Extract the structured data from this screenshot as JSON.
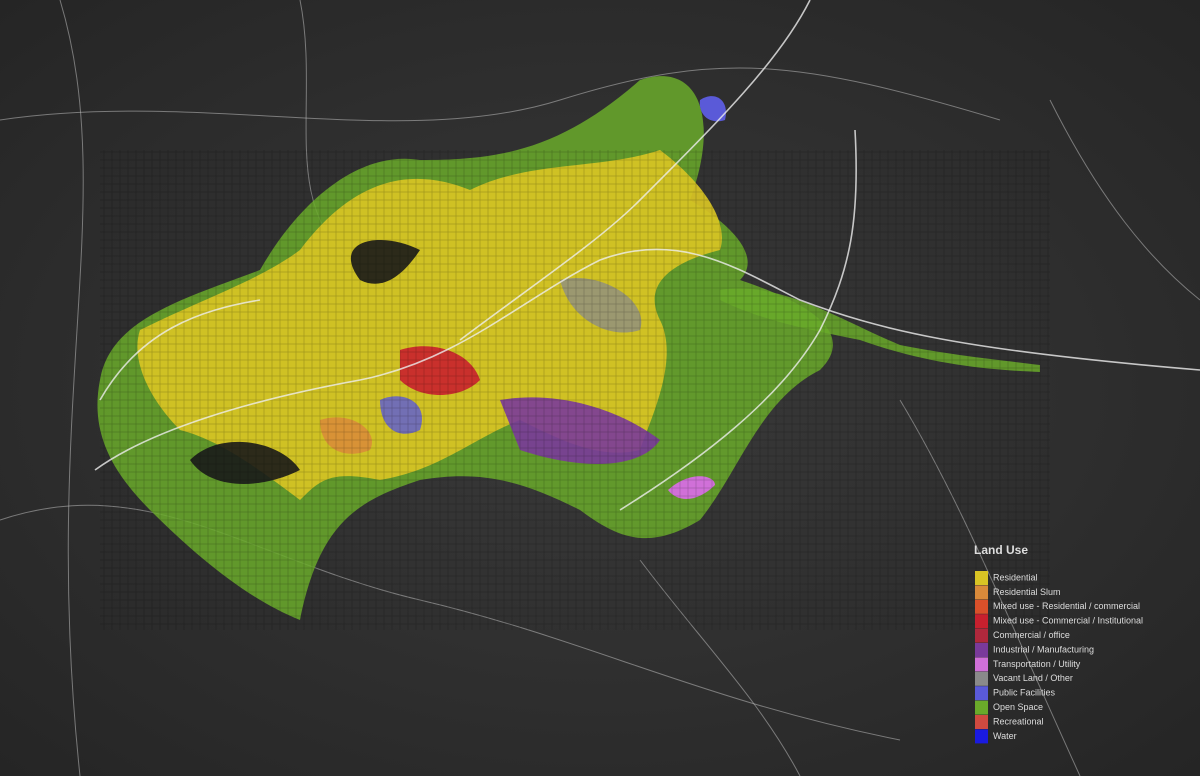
{
  "legend": {
    "title": "Land Use",
    "items": [
      {
        "label": "Residential",
        "color": "#d9c424"
      },
      {
        "label": "Residential Slum",
        "color": "#d98a3a"
      },
      {
        "label": "Mixed use - Residential / commercial",
        "color": "#d9502a"
      },
      {
        "label": "Mixed use - Commercial / Institutional",
        "color": "#c8202e"
      },
      {
        "label": "Commercial / office",
        "color": "#b0283c"
      },
      {
        "label": "Industrial / Manufacturing",
        "color": "#7a3a9a"
      },
      {
        "label": "Transportation / Utility",
        "color": "#d070d8"
      },
      {
        "label": "Vacant Land / Other",
        "color": "#8a8a8a"
      },
      {
        "label": "Public Facilities",
        "color": "#5a5ad8"
      },
      {
        "label": "Open Space",
        "color": "#6aaa2a"
      },
      {
        "label": "Recreational",
        "color": "#d04a40"
      },
      {
        "label": "Water",
        "color": "#1a1ae0"
      }
    ]
  }
}
